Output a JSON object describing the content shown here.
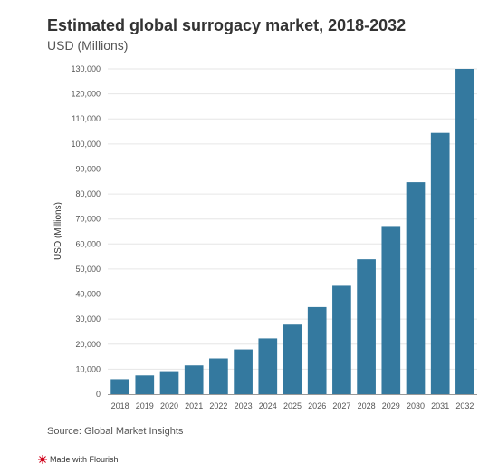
{
  "header": {
    "title": "Estimated global surrogacy market, 2018-2032",
    "subtitle": "USD (Millions)"
  },
  "footer": {
    "source": "Source: Global Market Insights",
    "credit": "Made with Flourish"
  },
  "colors": {
    "bar": "#34799f",
    "grid": "#e6e6e6",
    "axis": "#999999",
    "credit_icon": "#d0021b"
  },
  "icons": {
    "credit": "flourish-logo-icon"
  },
  "chart_data": {
    "type": "bar",
    "title": "Estimated global surrogacy market, 2018-2032",
    "subtitle": "USD (Millions)",
    "xlabel": "",
    "ylabel": "USD (Millions)",
    "ylim": [
      0,
      130000
    ],
    "yticks": [
      0,
      10000,
      20000,
      30000,
      40000,
      50000,
      60000,
      70000,
      80000,
      90000,
      100000,
      110000,
      120000,
      130000
    ],
    "ytick_labels": [
      "0",
      "10,000",
      "20,000",
      "30,000",
      "40,000",
      "50,000",
      "60,000",
      "70,000",
      "80,000",
      "90,000",
      "100,000",
      "110,000",
      "120,000",
      "130,000"
    ],
    "categories": [
      "2018",
      "2019",
      "2020",
      "2021",
      "2022",
      "2023",
      "2024",
      "2025",
      "2026",
      "2027",
      "2028",
      "2029",
      "2030",
      "2031",
      "2032"
    ],
    "values": [
      6000,
      7500,
      9200,
      11500,
      14300,
      17900,
      22300,
      27800,
      34800,
      43300,
      53900,
      67200,
      84700,
      104400,
      130000
    ],
    "grid": true,
    "legend": "none"
  }
}
